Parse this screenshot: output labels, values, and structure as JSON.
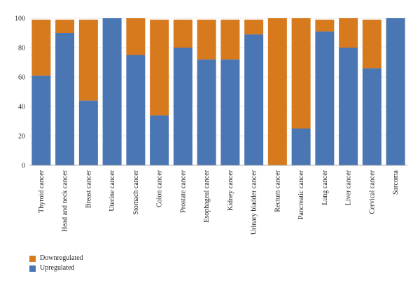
{
  "chart_data": {
    "type": "bar",
    "stacked": true,
    "orientation": "vertical",
    "categories": [
      "Thyroid cancer",
      "Head and neck cancer",
      "Breast cancer",
      "Uterine cancer",
      "Stomach cancer",
      "Colon cancer",
      "Prostate cancer",
      "Esophageal cancer",
      "Kidney cancer",
      "Urinary bladder cancer",
      "Rectum cancer",
      "Pancreatic cancer",
      "Lung cancer",
      "Liver cancer",
      "Cervical cancer",
      "Sarcoma"
    ],
    "series": [
      {
        "name": "Upregulated",
        "color": "#4a76b4",
        "values": [
          61,
          90,
          44,
          100,
          75,
          34,
          80,
          72,
          72,
          89,
          0,
          25,
          91,
          80,
          66,
          100
        ]
      },
      {
        "name": "Downregulated",
        "color": "#d77a1e",
        "values": [
          38,
          9,
          55,
          0,
          25,
          65,
          19,
          27,
          27,
          10,
          100,
          75,
          8,
          20,
          33,
          0
        ]
      }
    ],
    "title": "",
    "xlabel": "",
    "ylabel": "",
    "ylim": [
      0,
      100
    ],
    "yticks": [
      0,
      20,
      40,
      60,
      80,
      100
    ],
    "grid": true,
    "legend_position": "bottom-left",
    "legend_order": [
      "Downregulated",
      "Upregulated"
    ]
  }
}
